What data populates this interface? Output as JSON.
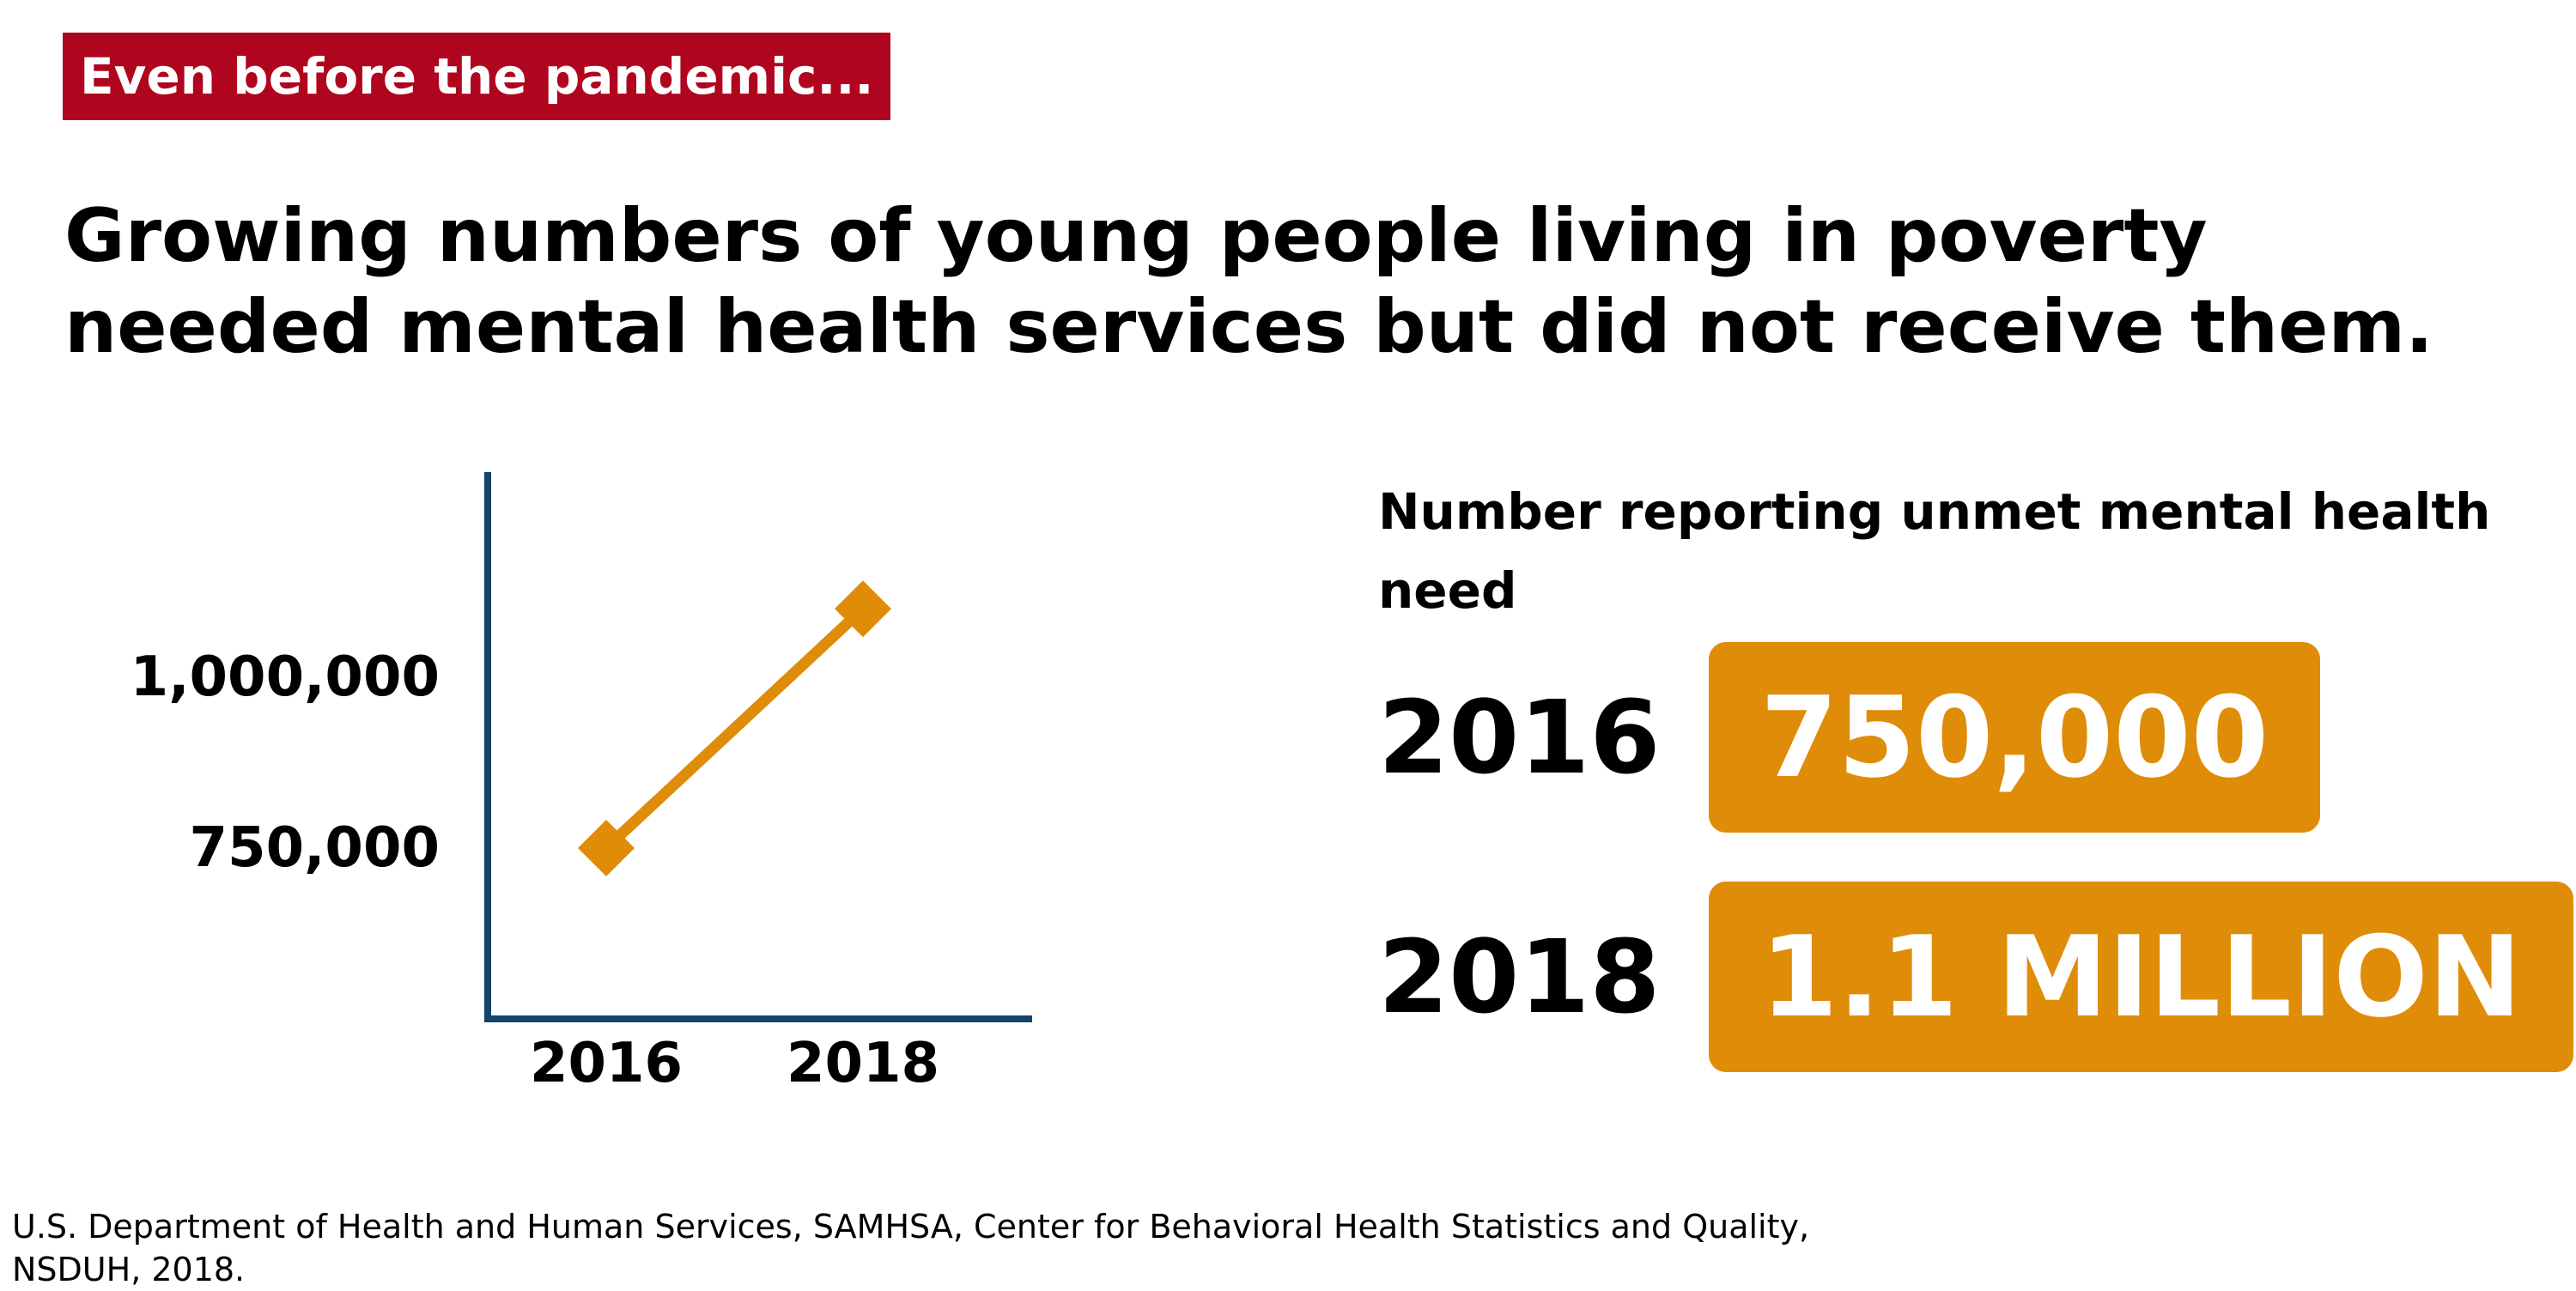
{
  "tag_label": "Even before the pandemic...",
  "headline": "Growing numbers of young people living in poverty\nneeded mental health services but did not receive them.",
  "colors": {
    "tag_bg": "#b0051e",
    "accent": "#df8c09",
    "axis": "#13446b"
  },
  "chart_data": {
    "type": "line",
    "title": "",
    "xlabel": "",
    "ylabel": "",
    "categories": [
      "2016",
      "2018"
    ],
    "series": [
      {
        "values": [
          750000,
          1100000
        ]
      }
    ],
    "y_tick_labels": [
      {
        "value": 1000000,
        "label": "1,000,000"
      },
      {
        "value": 750000,
        "label": "750,000"
      }
    ],
    "ylim": [
      500000,
      1300000
    ],
    "grid": false,
    "legend": "none",
    "marker": "diamond"
  },
  "stats": {
    "label": "Number reporting unmet mental health need",
    "rows": [
      {
        "year": "2016",
        "value": "750,000"
      },
      {
        "year": "2018",
        "value": "1.1 MILLION"
      }
    ]
  },
  "source": "U.S. Department of Health and Human Services, SAMHSA, Center for Behavioral Health Statistics and Quality,\nNSDUH, 2018."
}
